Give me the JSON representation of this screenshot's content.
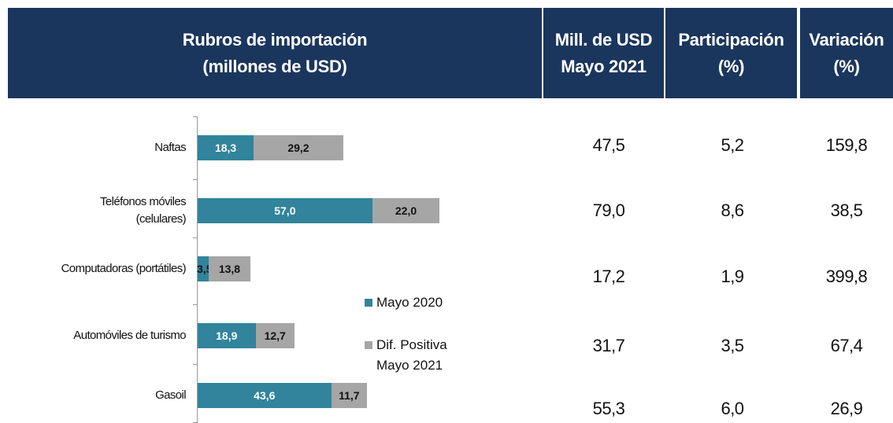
{
  "table": {
    "headers": [
      [
        "Rubros de importación",
        "(millones de USD)"
      ],
      [
        "Mill. de USD",
        "Mayo 2021"
      ],
      [
        "Participación",
        "(%)"
      ],
      [
        "Variación",
        "(%)"
      ]
    ],
    "rows": [
      [
        "47,5",
        "5,2",
        "159,8"
      ],
      [
        "79,0",
        "8,6",
        "38,5"
      ],
      [
        "17,2",
        "1,9",
        "399,8"
      ],
      [
        "31,7",
        "3,5",
        "67,4"
      ],
      [
        "55,3",
        "6,0",
        "26,9"
      ]
    ]
  },
  "chart_data": {
    "type": "bar",
    "orientation": "horizontal",
    "stacked": true,
    "categories": [
      "Naftas",
      "Teléfonos móviles (celulares)",
      "Computadoras (portátiles)",
      "Automóviles de turismo",
      "Gasoil"
    ],
    "series": [
      {
        "name": "Mayo 2020",
        "color": "#31849b",
        "values": [
          18.3,
          57.0,
          3.5,
          18.9,
          43.6
        ],
        "value_labels": [
          "18,3",
          "57,0",
          "3,5",
          "18,9",
          "43,6"
        ]
      },
      {
        "name": "Dif. Positiva Mayo 2021",
        "color": "#a6a6a6",
        "values": [
          29.2,
          22.0,
          13.8,
          12.7,
          11.7
        ],
        "value_labels": [
          "29,2",
          "22,0",
          "13,8",
          "12,7",
          "11,7"
        ]
      }
    ],
    "xlim": [
      0,
      100
    ]
  }
}
